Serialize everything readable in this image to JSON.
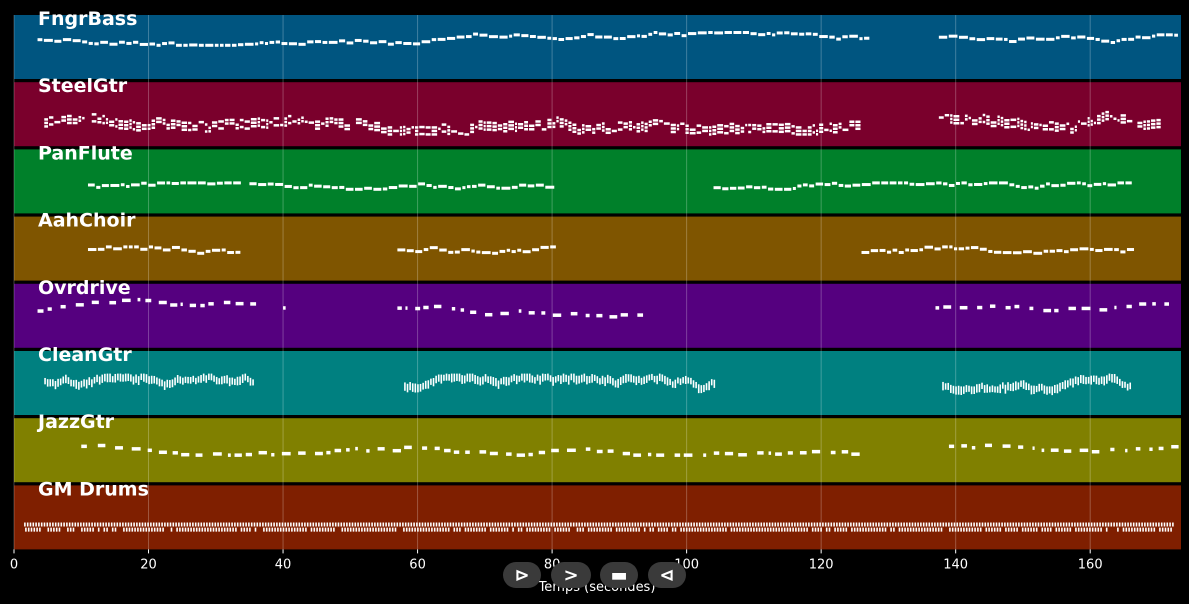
{
  "colors": {
    "background": "#000000",
    "note": "#ffffff",
    "grid": "#ffffff"
  },
  "chart_data": {
    "type": "piano-roll",
    "xlabel": "Temps (secondes)",
    "xlim": [
      0,
      173.5
    ],
    "x_ticks": [
      0,
      20,
      40,
      60,
      80,
      100,
      120,
      140,
      160
    ],
    "grid": true,
    "tracks": [
      {
        "name": "FngrBass",
        "color": "#005580",
        "style": "dash",
        "segments": [
          [
            3.5,
            126.5
          ],
          [
            137.5,
            172.5
          ]
        ],
        "pitch_range": [
          0.25,
          0.45
        ]
      },
      {
        "name": "SteelGtr",
        "color": "#7a002c",
        "style": "chord",
        "segments": [
          [
            4.5,
            126
          ],
          [
            137.5,
            170
          ]
        ],
        "pitch_range": [
          0.45,
          0.75
        ]
      },
      {
        "name": "PanFlute",
        "color": "#00802a",
        "style": "dash",
        "segments": [
          [
            11,
            33.5
          ],
          [
            35,
            80
          ],
          [
            104,
            166
          ]
        ],
        "pitch_range": [
          0.5,
          0.6
        ]
      },
      {
        "name": "AahChoir",
        "color": "#7f5500",
        "style": "dash",
        "segments": [
          [
            11,
            33.5
          ],
          [
            57,
            80
          ],
          [
            126,
            166
          ]
        ],
        "pitch_range": [
          0.45,
          0.55
        ]
      },
      {
        "name": "Ovrdrive",
        "color": "#55007f",
        "style": "scatter",
        "segments": [
          [
            3.5,
            36
          ],
          [
            40,
            41
          ],
          [
            57,
            93
          ],
          [
            137,
            172.5
          ]
        ],
        "pitch_range": [
          0.2,
          0.55
        ]
      },
      {
        "name": "CleanGtr",
        "color": "#008080",
        "style": "comb",
        "segments": [
          [
            4.5,
            35.5
          ],
          [
            58,
            104
          ],
          [
            138,
            166
          ]
        ],
        "pitch_range": [
          0.4,
          0.6
        ]
      },
      {
        "name": "JazzGtr",
        "color": "#808000",
        "style": "scatter",
        "segments": [
          [
            10,
            57
          ],
          [
            58,
            126
          ],
          [
            139,
            172.5
          ]
        ],
        "pitch_range": [
          0.25,
          0.55
        ]
      },
      {
        "name": "GM Drums",
        "color": "#7f1f00",
        "style": "drums",
        "segments": [
          [
            1.5,
            172.5
          ]
        ],
        "pitch_range": [
          0.25,
          0.6
        ]
      }
    ]
  },
  "transport": {
    "play_label": "⊳",
    "forward_label": ">",
    "stop_label": "▬",
    "back_label": "⊲"
  }
}
